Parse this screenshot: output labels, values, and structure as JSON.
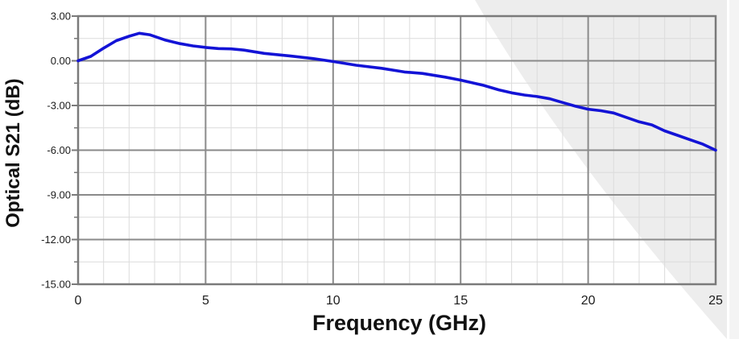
{
  "page": {
    "background_color": "#ffffff"
  },
  "decoration": {
    "swoosh_color": "#ededed",
    "edge_strip_color": "#f4f4f4",
    "gap_line_color": "#ffffff"
  },
  "chart_data": {
    "type": "line",
    "title": "",
    "xlabel": "Frequency (GHz)",
    "ylabel": "Optical S21 (dB)",
    "xlim": [
      0,
      25
    ],
    "ylim": [
      -15,
      3
    ],
    "x_major_ticks": [
      0,
      5,
      10,
      15,
      20,
      25
    ],
    "x_tick_labels": [
      "0",
      "5",
      "10",
      "15",
      "20",
      "25"
    ],
    "y_major_ticks": [
      3,
      0,
      -3,
      -6,
      -9,
      -12,
      -15
    ],
    "y_tick_labels": [
      "3.00",
      "0.00",
      "-3.00",
      "-6.00",
      "-9.00",
      "-12.00",
      "-15.00"
    ],
    "x_minor_step": 1,
    "y_minor_step": 1.5,
    "grid": "major and minor gridlines on",
    "legend": "none",
    "colors": {
      "major_grid": "#8a8a8a",
      "minor_grid": "#dcdcdc",
      "frame": "#7a7a7a",
      "tick_text": "#1c1c1c"
    },
    "series": [
      {
        "name": "Optical S21",
        "color": "#1313d6",
        "x": [
          0,
          0.5,
          1,
          1.5,
          2,
          2.4,
          2.8,
          3.4,
          4,
          4.5,
          5,
          5.5,
          6,
          6.5,
          7.3,
          8.3,
          9.2,
          10,
          10.9,
          11.9,
          12.8,
          13.5,
          14.4,
          15,
          15.9,
          16.5,
          17,
          17.5,
          18,
          18.5,
          19,
          19.5,
          20,
          20.5,
          21,
          21.5,
          22,
          22.5,
          23,
          23.5,
          24,
          24.5,
          25
        ],
        "y": [
          0,
          0.3,
          0.85,
          1.35,
          1.65,
          1.85,
          1.75,
          1.4,
          1.15,
          1.0,
          0.9,
          0.82,
          0.8,
          0.72,
          0.5,
          0.33,
          0.15,
          -0.05,
          -0.3,
          -0.5,
          -0.75,
          -0.85,
          -1.1,
          -1.3,
          -1.65,
          -1.95,
          -2.15,
          -2.3,
          -2.4,
          -2.55,
          -2.8,
          -3.05,
          -3.25,
          -3.35,
          -3.5,
          -3.8,
          -4.1,
          -4.3,
          -4.7,
          -5.0,
          -5.3,
          -5.6,
          -6.0
        ]
      }
    ]
  }
}
